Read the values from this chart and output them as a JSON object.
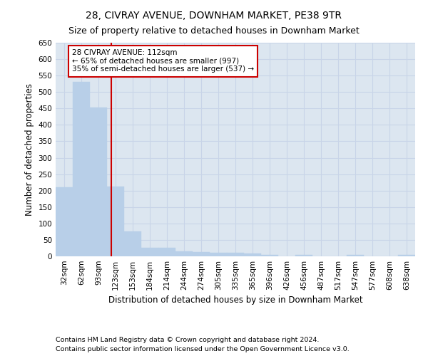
{
  "title": "28, CIVRAY AVENUE, DOWNHAM MARKET, PE38 9TR",
  "subtitle": "Size of property relative to detached houses in Downham Market",
  "xlabel": "Distribution of detached houses by size in Downham Market",
  "ylabel": "Number of detached properties",
  "categories": [
    "32sqm",
    "62sqm",
    "93sqm",
    "123sqm",
    "153sqm",
    "184sqm",
    "214sqm",
    "244sqm",
    "274sqm",
    "305sqm",
    "335sqm",
    "365sqm",
    "396sqm",
    "426sqm",
    "456sqm",
    "487sqm",
    "517sqm",
    "547sqm",
    "577sqm",
    "608sqm",
    "638sqm"
  ],
  "values": [
    210,
    530,
    452,
    212,
    75,
    27,
    27,
    15,
    12,
    10,
    10,
    8,
    5,
    0,
    5,
    0,
    0,
    5,
    0,
    0,
    5
  ],
  "bar_color": "#b8cfe8",
  "bar_edgecolor": "#b8cfe8",
  "grid_color": "#c8d4e8",
  "background_color": "#dce6f0",
  "vline_x": 2.73,
  "vline_color": "#cc0000",
  "annotation_text": "28 CIVRAY AVENUE: 112sqm\n← 65% of detached houses are smaller (997)\n35% of semi-detached houses are larger (537) →",
  "annotation_box_color": "#ffffff",
  "annotation_box_edgecolor": "#cc0000",
  "ylim": [
    0,
    650
  ],
  "yticks": [
    0,
    50,
    100,
    150,
    200,
    250,
    300,
    350,
    400,
    450,
    500,
    550,
    600,
    650
  ],
  "footnote1": "Contains HM Land Registry data © Crown copyright and database right 2024.",
  "footnote2": "Contains public sector information licensed under the Open Government Licence v3.0.",
  "title_fontsize": 10,
  "subtitle_fontsize": 9,
  "xlabel_fontsize": 8.5,
  "ylabel_fontsize": 8.5,
  "tick_fontsize": 7.5,
  "annotation_fontsize": 7.5,
  "footnote_fontsize": 6.8
}
